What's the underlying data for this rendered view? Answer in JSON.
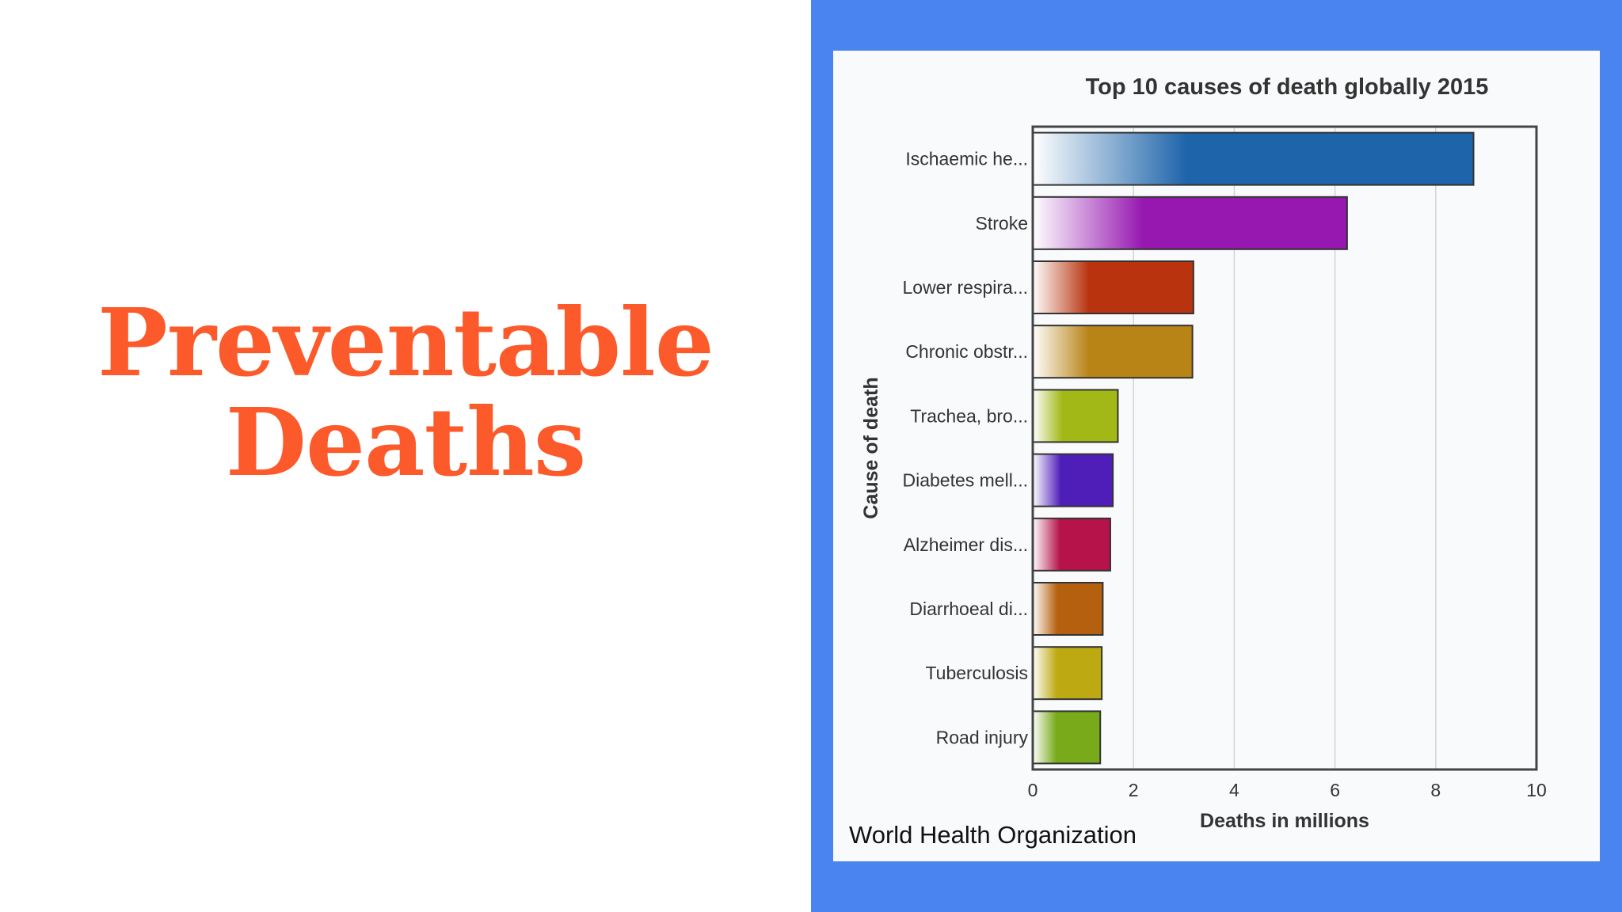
{
  "slide": {
    "title": "Preventable\nDeaths",
    "title_color": "#fc5a2b",
    "panel_color": "#4a84f0"
  },
  "source": "World Health Organization",
  "chart_data": {
    "type": "bar",
    "orientation": "horizontal",
    "title": "Top 10 causes of death globally 2015",
    "xlabel": "Deaths in millions",
    "ylabel": "Cause of death",
    "xlim": [
      0,
      10
    ],
    "xticks": [
      "0",
      "2",
      "4",
      "6",
      "8",
      "10"
    ],
    "grid": true,
    "categories": [
      "Ischaemic he...",
      "Stroke",
      "Lower respira...",
      "Chronic obstr...",
      "Trachea, bro...",
      "Diabetes mell...",
      "Alzheimer dis...",
      "Diarrhoeal di...",
      "Tuberculosis",
      "Road injury"
    ],
    "values": [
      8.75,
      6.24,
      3.19,
      3.17,
      1.69,
      1.59,
      1.54,
      1.39,
      1.37,
      1.34
    ],
    "colors": [
      "#1e64aa",
      "#9618b0",
      "#b8330e",
      "#b88416",
      "#a2b816",
      "#4f1eb8",
      "#b5134a",
      "#b5600f",
      "#bda912",
      "#78aa1a"
    ]
  }
}
